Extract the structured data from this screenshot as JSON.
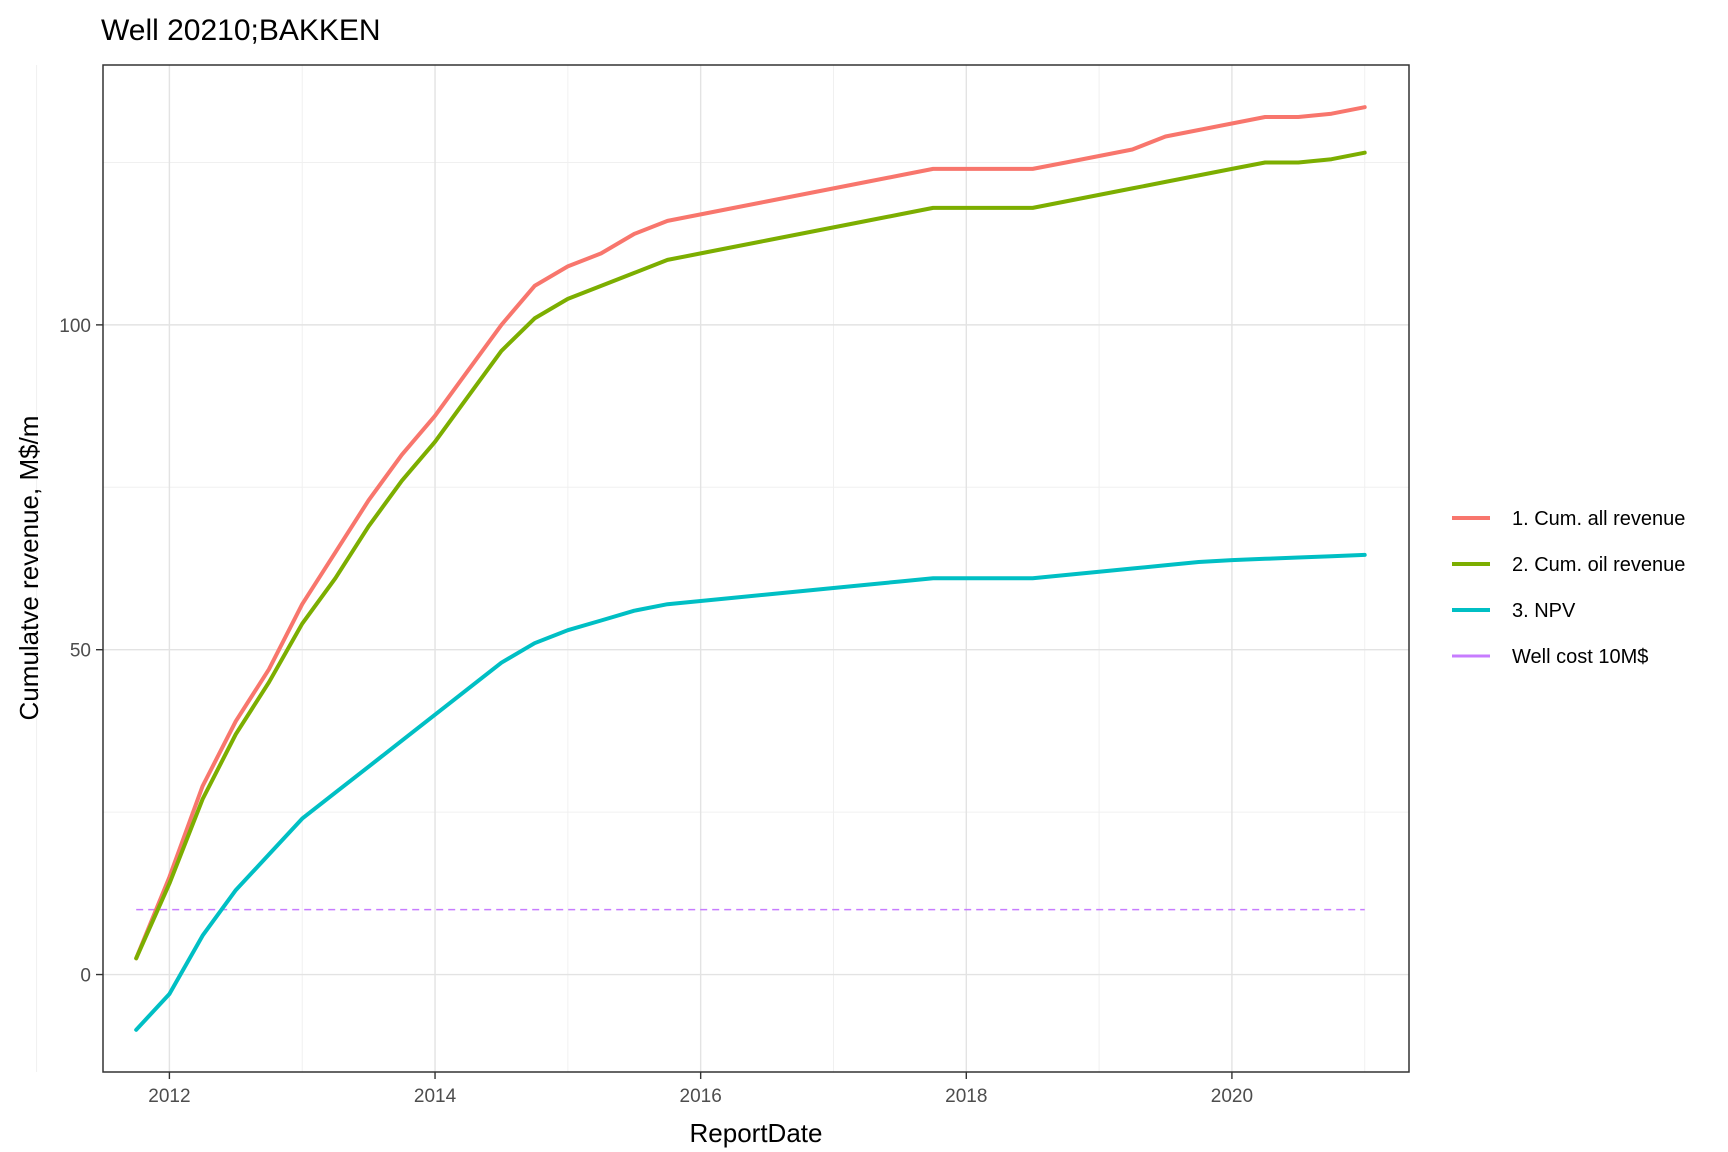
{
  "chart_data": {
    "type": "line",
    "title": "Well 20210;BAKKEN",
    "xlabel": "ReportDate",
    "ylabel": "Cumulatve revenue, M$/m",
    "x_tick_labels": [
      "2012",
      "2014",
      "2016",
      "2018",
      "2020"
    ],
    "y_tick_labels": [
      "0",
      "50",
      "100"
    ],
    "xlim": [
      "2011-07-01",
      "2021-05-01"
    ],
    "ylim": [
      -15,
      140
    ],
    "grid": true,
    "legend_position": "right",
    "x": [
      "2011-10-01",
      "2012-01-01",
      "2012-04-01",
      "2012-07-01",
      "2012-10-01",
      "2013-01-01",
      "2013-04-01",
      "2013-07-01",
      "2013-10-01",
      "2014-01-01",
      "2014-04-01",
      "2014-07-01",
      "2014-10-01",
      "2015-01-01",
      "2015-04-01",
      "2015-07-01",
      "2015-10-01",
      "2016-01-01",
      "2016-04-01",
      "2016-07-01",
      "2016-10-01",
      "2017-01-01",
      "2017-04-01",
      "2017-07-01",
      "2017-10-01",
      "2018-01-01",
      "2018-04-01",
      "2018-07-01",
      "2018-10-01",
      "2019-01-01",
      "2019-04-01",
      "2019-07-01",
      "2019-10-01",
      "2020-01-01",
      "2020-04-01",
      "2020-07-01",
      "2020-10-01",
      "2021-01-01"
    ],
    "series": [
      {
        "name": "1. Cum. all revenue",
        "color": "#F8766D",
        "values": [
          2.5,
          15,
          29,
          39,
          47,
          57,
          65,
          73,
          80,
          86,
          93,
          100,
          106,
          109,
          111,
          114,
          116,
          117,
          118,
          119,
          120,
          121,
          122,
          123,
          124,
          124,
          124,
          124,
          125,
          126,
          127,
          129,
          130,
          131,
          132,
          132,
          132.5,
          133.5
        ]
      },
      {
        "name": "2. Cum. oil revenue",
        "color": "#7CAE00",
        "values": [
          2.5,
          14,
          27,
          37,
          45,
          54,
          61,
          69,
          76,
          82,
          89,
          96,
          101,
          104,
          106,
          108,
          110,
          111,
          112,
          113,
          114,
          115,
          116,
          117,
          118,
          118,
          118,
          118,
          119,
          120,
          121,
          122,
          123,
          124,
          125,
          125,
          125.5,
          126.5
        ]
      },
      {
        "name": "3. NPV",
        "color": "#00BFC4",
        "values": [
          -8.5,
          -3,
          6,
          13,
          18.5,
          24,
          28,
          32,
          36,
          40,
          44,
          48,
          51,
          53,
          54.5,
          56,
          57,
          57.5,
          58,
          58.5,
          59,
          59.5,
          60,
          60.5,
          61,
          61,
          61,
          61,
          61.5,
          62,
          62.5,
          63,
          63.5,
          63.8,
          64,
          64.2,
          64.4,
          64.6
        ]
      }
    ],
    "reference_lines": [
      {
        "name": "Well cost 10M$",
        "y": 10,
        "color": "#C77CFF",
        "style": "dashed"
      }
    ]
  }
}
